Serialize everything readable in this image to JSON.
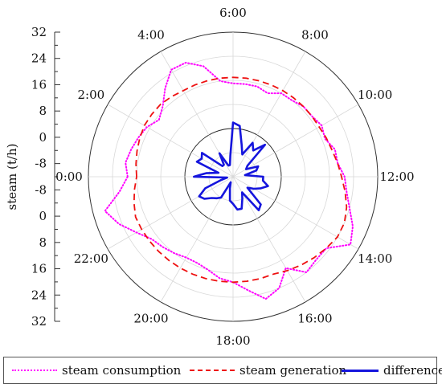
{
  "chart_data": {
    "type": "radar",
    "title": "",
    "ylabel": "steam (t/h)",
    "radial_ticks": [
      "32",
      "24",
      "16",
      "8",
      "0",
      "-8",
      "-8",
      "0",
      "8",
      "16",
      "24",
      "32"
    ],
    "radial_range": [
      -16,
      32
    ],
    "angular_ticks": [
      "0:00",
      "2:00",
      "4:00",
      "6:00",
      "8:00",
      "10:00",
      "12:00",
      "14:00",
      "16:00",
      "18:00",
      "20:00",
      "22:00"
    ],
    "time_unit": "hours",
    "grid": true,
    "legend_position": "bottom",
    "series": [
      {
        "name": "steam consumption",
        "color": "#ff00ff",
        "style": "dotted",
        "x": [
          0,
          0.5,
          1,
          1.5,
          2,
          2.5,
          3,
          3.5,
          4,
          4.5,
          5,
          5.5,
          6,
          6.5,
          7,
          7.5,
          8,
          8.5,
          9,
          9.5,
          10,
          10.5,
          11,
          11.5,
          12,
          12.5,
          13,
          13.5,
          14,
          14.5,
          15,
          15.5,
          16,
          16.5,
          17,
          17.5,
          18,
          18.5,
          19,
          19.5,
          20,
          20.5,
          21,
          21.5,
          22,
          22.5,
          23,
          23.5
        ],
        "values": [
          19,
          20,
          19,
          18,
          17,
          15,
          17,
          21,
          25,
          25,
          22,
          16,
          15,
          15,
          15,
          14,
          16,
          16,
          17,
          17,
          18,
          17,
          19,
          19,
          21,
          22,
          24,
          27,
          29,
          23,
          23,
          24,
          19,
          24,
          26,
          22,
          19,
          18,
          16,
          15,
          15,
          16,
          17,
          18,
          21,
          25,
          28,
          22
        ]
      },
      {
        "name": "steam generation",
        "color": "#ee1111",
        "style": "dashed",
        "x": [
          0,
          0.5,
          1,
          1.5,
          2,
          2.5,
          3,
          3.5,
          4,
          4.5,
          5,
          5.5,
          6,
          6.5,
          7,
          7.5,
          8,
          8.5,
          9,
          9.5,
          10,
          10.5,
          11,
          11.5,
          12,
          12.5,
          13,
          13.5,
          14,
          14.5,
          15,
          15.5,
          16,
          16.5,
          17,
          17.5,
          18,
          18.5,
          19,
          19.5,
          20,
          20.5,
          21,
          21.5,
          22,
          22.5,
          23,
          23.5
        ],
        "values": [
          16,
          16.5,
          17,
          17.5,
          18,
          18,
          18,
          17.5,
          17,
          17,
          17,
          17,
          17,
          17,
          17,
          17,
          17,
          17,
          17,
          17,
          17,
          17.5,
          18,
          19,
          20,
          21.5,
          23,
          24,
          24,
          23,
          22,
          21,
          20,
          19,
          19,
          19,
          19,
          19,
          19,
          19,
          19,
          19,
          19,
          19,
          19,
          19,
          18,
          17
        ]
      },
      {
        "name": "difference",
        "color": "#1515dd",
        "style": "solid",
        "x": [
          0,
          0.5,
          1,
          1.5,
          2,
          2.5,
          3,
          3.5,
          4,
          4.5,
          5,
          5.5,
          6,
          6.5,
          7,
          7.5,
          8,
          8.5,
          9,
          9.5,
          10,
          10.5,
          11,
          11.5,
          12,
          12.5,
          13,
          13.5,
          14,
          14.5,
          15,
          15.5,
          16,
          16.5,
          17,
          17.5,
          18,
          18.5,
          19,
          19.5,
          20,
          20.5,
          21,
          21.5,
          22,
          22.5,
          23,
          23.5
        ],
        "values": [
          -3,
          -7,
          -11,
          -3,
          -4,
          -3,
          -11,
          -11,
          -7,
          -12,
          -12,
          -9,
          2,
          1,
          -5,
          -8,
          -3,
          -5,
          -1,
          -10,
          -11,
          -7,
          -8,
          -12,
          -6,
          -6,
          -4,
          -6,
          -8,
          -10,
          -3,
          -2,
          -10,
          -8,
          -5,
          -5,
          -7,
          -8,
          -12,
          -14,
          -8,
          -7,
          -6,
          -4,
          -3,
          -6,
          -12,
          -14
        ]
      }
    ]
  }
}
